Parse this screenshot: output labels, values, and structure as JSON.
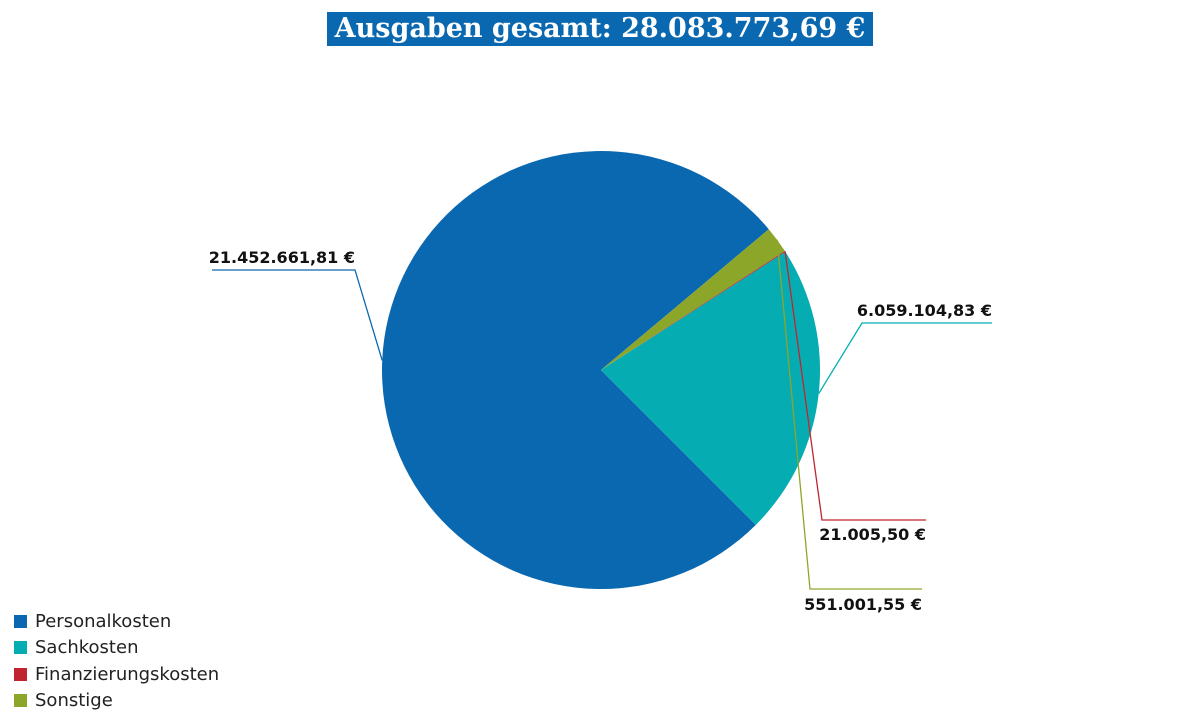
{
  "chart_data": {
    "type": "pie",
    "title": "Ausgaben gesamt: 28.083.773,69 €",
    "legend_position": "bottom-left",
    "slices": [
      {
        "name": "Personalkosten",
        "value": 21452661.81,
        "label": "21.452.661,81 €",
        "color": "#0a68b0"
      },
      {
        "name": "Sachkosten",
        "value": 6059104.83,
        "label": "6.059.104,83 €",
        "color": "#05adb3"
      },
      {
        "name": "Finanzierungskosten",
        "value": 21005.5,
        "label": "21.005,50 €",
        "color": "#c0252f"
      },
      {
        "name": "Sonstige",
        "value": 551001.55,
        "label": "551.001,55 €",
        "color": "#8ca62a"
      }
    ]
  }
}
